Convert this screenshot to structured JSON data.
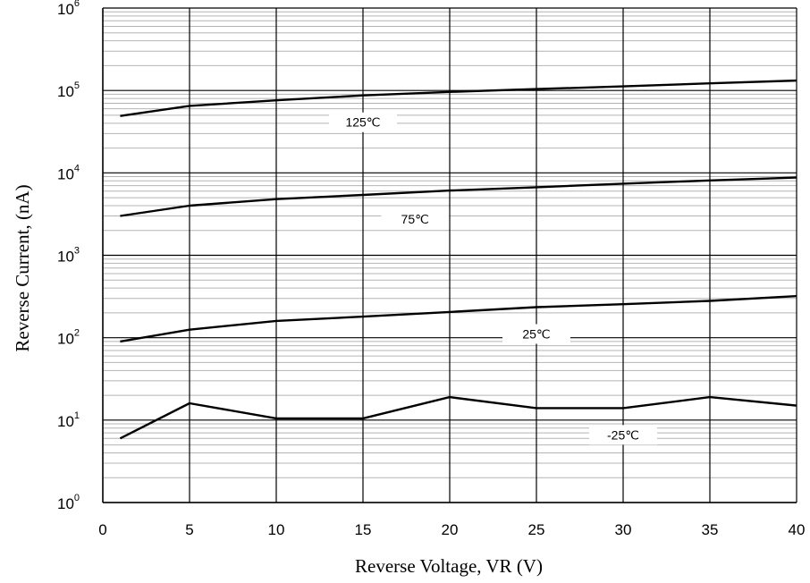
{
  "chart_data": {
    "type": "line",
    "xlabel": "Reverse Voltage, VR (V)",
    "ylabel": "Reverse Current, (nA)",
    "xlim": [
      0,
      40
    ],
    "ylim": [
      1,
      1000000
    ],
    "yscale": "log",
    "x_ticks": [
      "0",
      "5",
      "10",
      "15",
      "20",
      "25",
      "30",
      "35",
      "40"
    ],
    "y_ticks": [
      {
        "base": "10",
        "exp": "0"
      },
      {
        "base": "10",
        "exp": "1"
      },
      {
        "base": "10",
        "exp": "2"
      },
      {
        "base": "10",
        "exp": "3"
      },
      {
        "base": "10",
        "exp": "4"
      },
      {
        "base": "10",
        "exp": "5"
      },
      {
        "base": "10",
        "exp": "6"
      }
    ],
    "grid": true,
    "series": [
      {
        "name": "125℃",
        "x": [
          1,
          5,
          10,
          15,
          20,
          25,
          30,
          35,
          40
        ],
        "y": [
          49000,
          65000,
          76000,
          87000,
          96000,
          104000,
          112000,
          122000,
          132000
        ]
      },
      {
        "name": "75℃",
        "x": [
          1,
          5,
          10,
          15,
          20,
          25,
          30,
          35,
          40
        ],
        "y": [
          3000,
          4000,
          4800,
          5400,
          6100,
          6700,
          7400,
          8100,
          8800
        ]
      },
      {
        "name": "25℃",
        "x": [
          1,
          5,
          10,
          15,
          20,
          25,
          30,
          35,
          40
        ],
        "y": [
          90,
          125,
          160,
          180,
          205,
          235,
          255,
          280,
          320
        ]
      },
      {
        "name": "-25℃",
        "x": [
          1,
          5,
          10,
          15,
          20,
          25,
          30,
          35,
          40
        ],
        "y": [
          6,
          16,
          10.5,
          10.5,
          19,
          14,
          14,
          19,
          15
        ]
      }
    ]
  }
}
